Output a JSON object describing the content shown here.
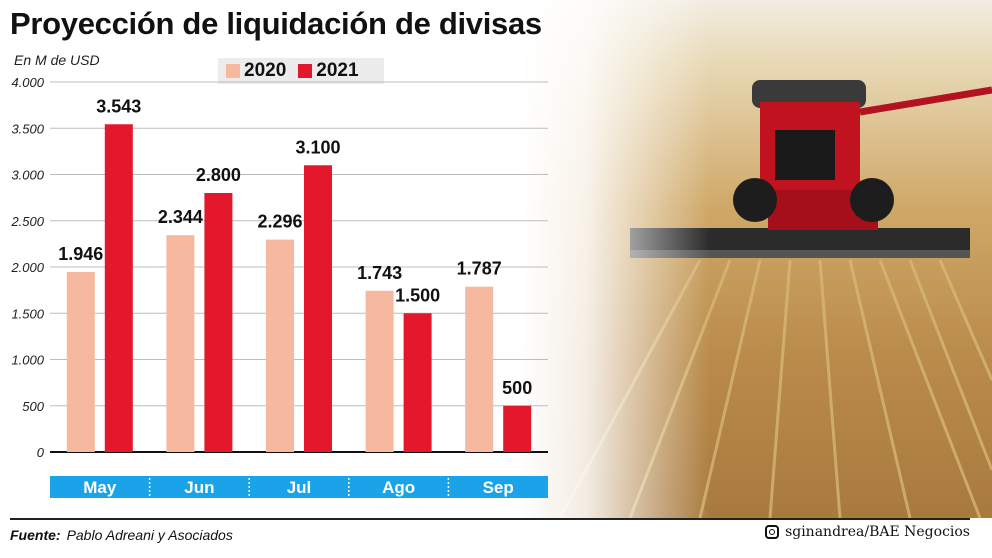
{
  "title": "Proyección de liquidación de divisas",
  "unit": "En M de USD",
  "legend": [
    {
      "label": "2020",
      "color": "#f6b9a0"
    },
    {
      "label": "2021",
      "color": "#e3182d"
    }
  ],
  "footer": {
    "source_label": "Fuente:",
    "source_value": "Pablo Adreani y Asociados",
    "credit": "sginandrea/BAE Negocios",
    "credit_icon": "instagram-icon"
  },
  "chart_data": {
    "type": "bar",
    "title": "Proyección de liquidación de divisas",
    "ylabel": "En M de USD",
    "xlabel": "",
    "categories": [
      "May",
      "Jun",
      "Jul",
      "Ago",
      "Sep"
    ],
    "series": [
      {
        "name": "2020",
        "color": "#f6b9a0",
        "values": [
          1946,
          2344,
          2296,
          1743,
          1787
        ],
        "labels": [
          "1.946",
          "2.344",
          "2.296",
          "1.743",
          "1.787"
        ]
      },
      {
        "name": "2021",
        "color": "#e3182d",
        "values": [
          3543,
          2800,
          3100,
          1500,
          500
        ],
        "labels": [
          "3.543",
          "2.800",
          "3.100",
          "1.500",
          "500"
        ]
      }
    ],
    "ylim": [
      0,
      4000
    ],
    "yticks": [
      0,
      500,
      1000,
      1500,
      2000,
      2500,
      3000,
      3500,
      4000
    ],
    "ytick_labels": [
      "0",
      "500",
      "1.000",
      "1.500",
      "2.000",
      "2.500",
      "3.000",
      "3.500",
      "4.000"
    ],
    "category_band_color": "#1aa3e8",
    "grid": true,
    "legend_position": "top"
  }
}
